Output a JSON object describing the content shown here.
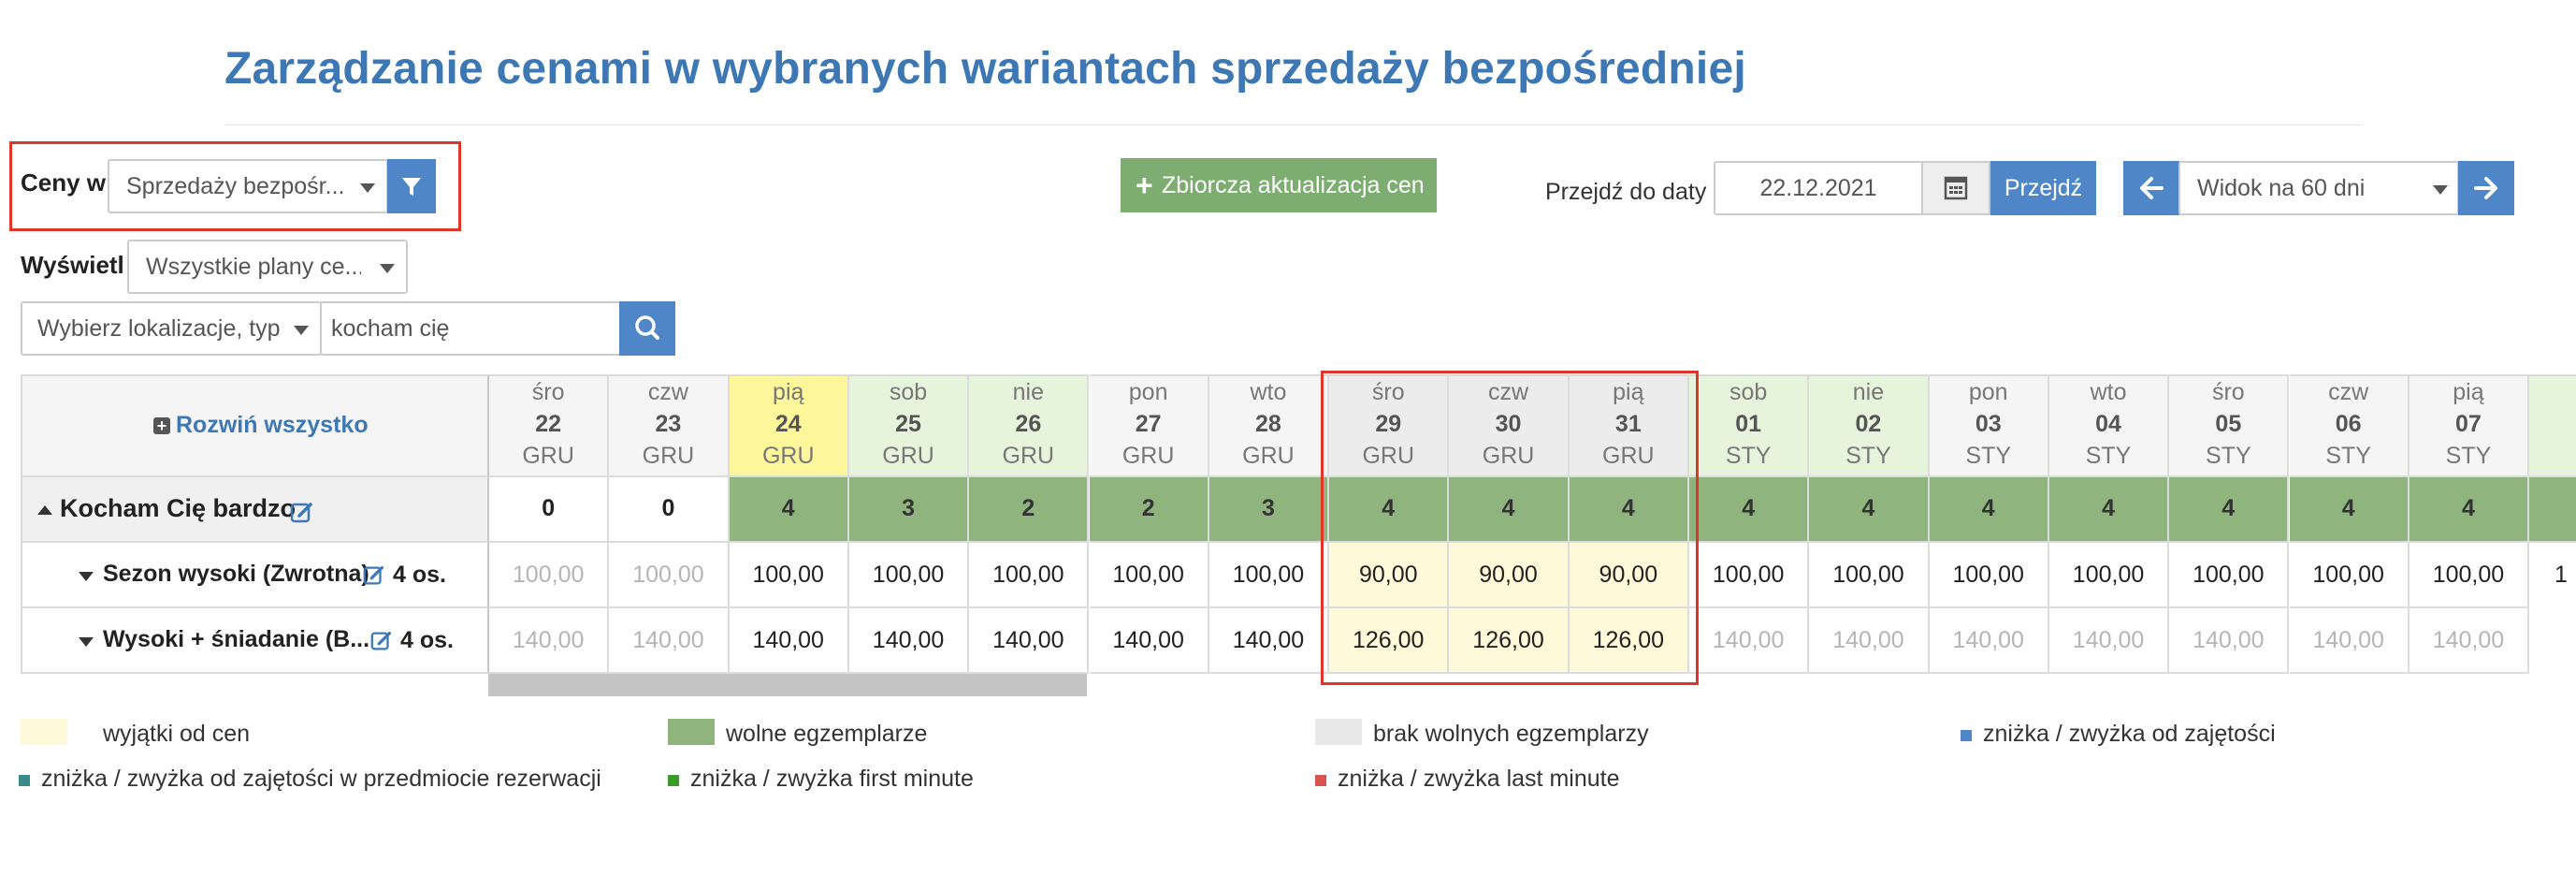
{
  "page_title": "Zarządzanie cenami w wybranych wariantach sprzedaży bezpośredniej",
  "filters": {
    "prices_in_label": "Ceny w",
    "prices_in_value": "Sprzedaży bezpośr...",
    "display_label": "Wyświetl",
    "display_value": "Wszystkie plany ce...",
    "location_placeholder": "Wybierz lokalizacje, typ",
    "search_value": "kocham cię"
  },
  "toolbar": {
    "bulk_update_label": "Zbiorcza aktualizacja cen",
    "goto_label": "Przejdź do daty",
    "goto_date": "22.12.2021",
    "goto_button": "Przejdź",
    "view_value": "Widok na 60 dni"
  },
  "grid": {
    "expand_all": "Rozwiń wszystko",
    "columns": [
      {
        "dow": "śro",
        "day": "22",
        "mon": "GRU"
      },
      {
        "dow": "czw",
        "day": "23",
        "mon": "GRU"
      },
      {
        "dow": "pią",
        "day": "24",
        "mon": "GRU"
      },
      {
        "dow": "sob",
        "day": "25",
        "mon": "GRU"
      },
      {
        "dow": "nie",
        "day": "26",
        "mon": "GRU"
      },
      {
        "dow": "pon",
        "day": "27",
        "mon": "GRU"
      },
      {
        "dow": "wto",
        "day": "28",
        "mon": "GRU"
      },
      {
        "dow": "śro",
        "day": "29",
        "mon": "GRU"
      },
      {
        "dow": "czw",
        "day": "30",
        "mon": "GRU"
      },
      {
        "dow": "pią",
        "day": "31",
        "mon": "GRU"
      },
      {
        "dow": "sob",
        "day": "01",
        "mon": "STY"
      },
      {
        "dow": "nie",
        "day": "02",
        "mon": "STY"
      },
      {
        "dow": "pon",
        "day": "03",
        "mon": "STY"
      },
      {
        "dow": "wto",
        "day": "04",
        "mon": "STY"
      },
      {
        "dow": "śro",
        "day": "05",
        "mon": "STY"
      },
      {
        "dow": "czw",
        "day": "06",
        "mon": "STY"
      },
      {
        "dow": "pią",
        "day": "07",
        "mon": "STY"
      }
    ],
    "object_row": {
      "name": "Kocham Cię bardzo",
      "availability": [
        "0",
        "0",
        "4",
        "3",
        "2",
        "2",
        "3",
        "4",
        "4",
        "4",
        "4",
        "4",
        "4",
        "4",
        "4",
        "4",
        "4"
      ]
    },
    "rate_rows": [
      {
        "name": "Sezon wysoki (Zwrotna)",
        "persons": "4 os.",
        "prices": [
          "100,00",
          "100,00",
          "100,00",
          "100,00",
          "100,00",
          "100,00",
          "100,00",
          "90,00",
          "90,00",
          "90,00",
          "100,00",
          "100,00",
          "100,00",
          "100,00",
          "100,00",
          "100,00",
          "100,00"
        ],
        "next_partial": "1"
      },
      {
        "name": "Wysoki + śniadanie (B...",
        "persons": "4 os.",
        "prices": [
          "140,00",
          "140,00",
          "140,00",
          "140,00",
          "140,00",
          "140,00",
          "140,00",
          "126,00",
          "126,00",
          "126,00",
          "140,00",
          "140,00",
          "140,00",
          "140,00",
          "140,00",
          "140,00",
          "140,00"
        ],
        "next_partial": ""
      }
    ]
  },
  "legend": [
    {
      "label": "wyjątki od cen",
      "color": "#fdf9d9"
    },
    {
      "label": "wolne egzemplarze",
      "color": "#8fb47e"
    },
    {
      "label": "brak wolnych egzemplarzy",
      "color": "#e8e8e8"
    },
    {
      "label": "zniżka / zwyżka od zajętości",
      "color": "#4e86c7"
    },
    {
      "label": "zniżka / zwyżka od zajętości w przedmiocie rezerwacji",
      "color": "#3a8a8a"
    },
    {
      "label": "zniżka / zwyżka first minute",
      "color": "#3a9a2a"
    },
    {
      "label": "zniżka / zwyżka last minute",
      "color": "#d9534f"
    }
  ]
}
